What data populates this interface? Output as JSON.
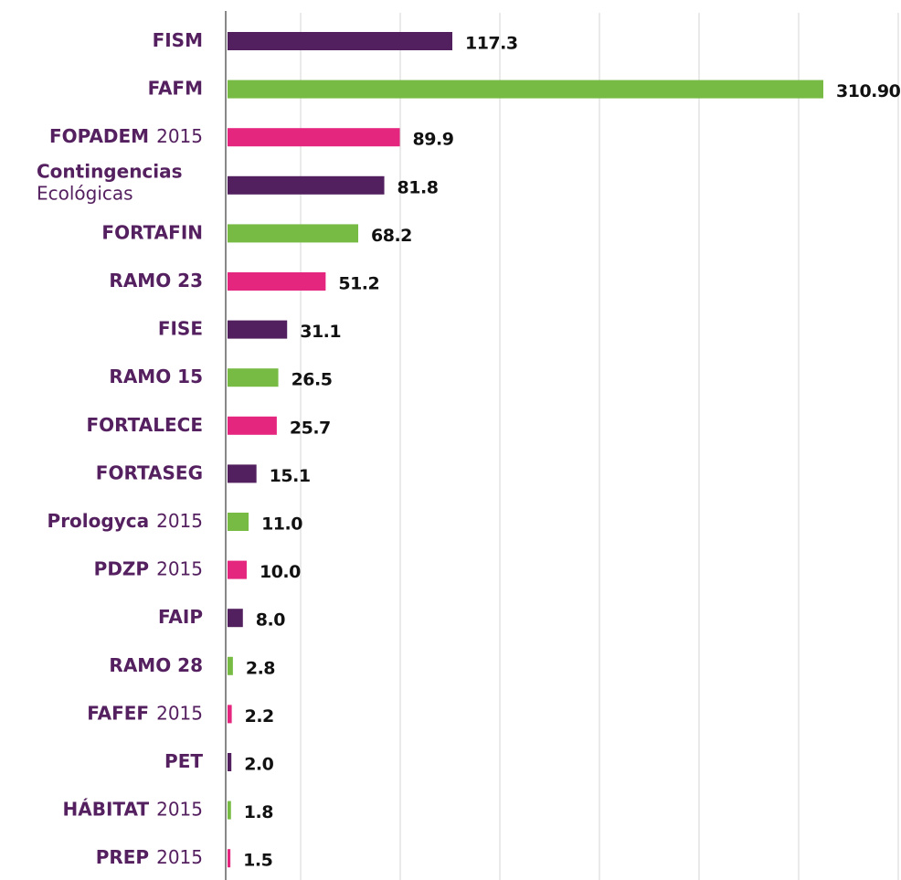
{
  "chart_data": {
    "type": "bar",
    "orientation": "horizontal",
    "categories": [
      {
        "name": "FISM"
      },
      {
        "name": "FAFM"
      },
      {
        "name": "FOPADEM",
        "suffix": "2015"
      },
      {
        "name": "Contingencias",
        "line2": "Ecológicas"
      },
      {
        "name": "FORTAFIN"
      },
      {
        "name": "RAMO 23"
      },
      {
        "name": "FISE"
      },
      {
        "name": "RAMO 15"
      },
      {
        "name": "FORTALECE"
      },
      {
        "name": "FORTASEG"
      },
      {
        "name": "Prologyca",
        "suffix": "2015"
      },
      {
        "name": "PDZP",
        "suffix": "2015"
      },
      {
        "name": "FAIP"
      },
      {
        "name": "RAMO 28"
      },
      {
        "name": "FAFEF",
        "suffix": "2015"
      },
      {
        "name": "PET"
      },
      {
        "name": "HÁBITAT",
        "suffix": "2015"
      },
      {
        "name": "PREP",
        "suffix": "2015"
      }
    ],
    "values": [
      117.3,
      310.9,
      89.9,
      81.8,
      68.2,
      51.2,
      31.1,
      26.5,
      25.7,
      15.1,
      11.0,
      10.0,
      8.0,
      2.8,
      2.2,
      2.0,
      1.8,
      1.5
    ],
    "value_labels": [
      "117.3",
      "310.90",
      "89.9",
      "81.8",
      "68.2",
      "51.2",
      "31.1",
      "26.5",
      "25.7",
      "15.1",
      "11.0",
      "10.0",
      "8.0",
      "2.8",
      "2.2",
      "2.0",
      "1.8",
      "1.5"
    ],
    "colors": [
      "#52205e",
      "#77bb44",
      "#e5267f",
      "#52205e",
      "#77bb44",
      "#e5267f",
      "#52205e",
      "#77bb44",
      "#e5267f",
      "#52205e",
      "#77bb44",
      "#e5267f",
      "#52205e",
      "#77bb44",
      "#e5267f",
      "#52205e",
      "#77bb44",
      "#e5267f"
    ],
    "xlim": [
      0,
      350
    ]
  }
}
